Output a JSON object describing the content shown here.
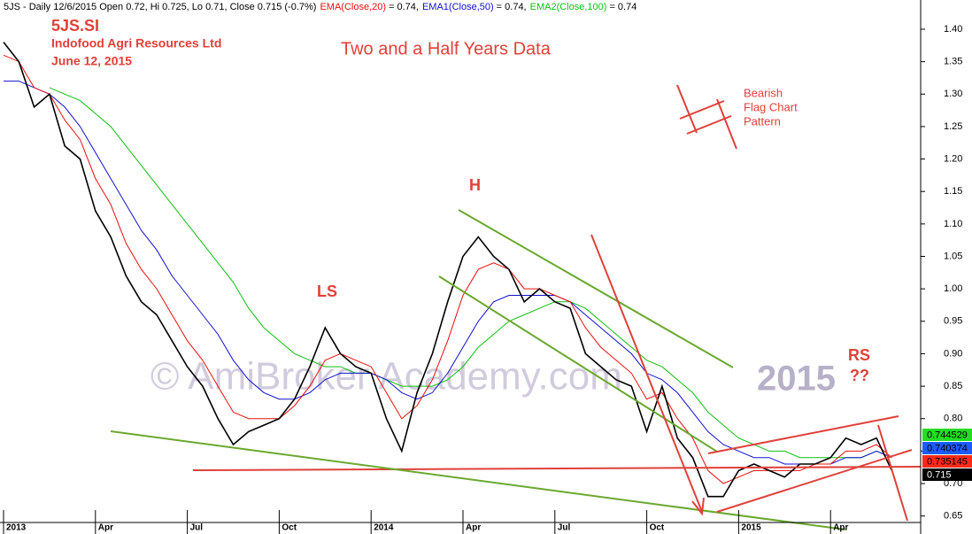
{
  "chart_data": {
    "type": "line",
    "header_prefix": "5JS - Daily 12/6/2015 Open 0.72, Hi 0.725, Lo 0.71, Close 0.715 (-0.7%)",
    "annotations": {
      "ticker": "5JS.SI",
      "company": "Indofood Agri Resources Ltd",
      "date": "June 12, 2015",
      "subtitle": "Two and a Half Years Data",
      "head": "H",
      "left_shoulder": "LS",
      "right_shoulder": "RS",
      "question": "??",
      "flag_1": "Bearish",
      "flag_2": "Flag Chart",
      "flag_3": "Pattern",
      "watermark": "© AmiBroker Academy.com",
      "watermark_year": "2015"
    },
    "x": [
      0,
      0.5,
      1,
      1.5,
      2,
      2.5,
      3,
      3.5,
      4,
      4.5,
      5,
      5.5,
      6,
      6.5,
      7,
      7.5,
      8,
      8.5,
      9,
      9.5,
      10,
      10.5,
      11,
      11.5,
      12,
      12.5,
      13,
      13.5,
      14,
      14.5,
      15,
      15.5,
      16,
      16.5,
      17,
      17.5,
      18,
      18.5,
      19,
      19.5,
      20,
      20.5,
      21,
      21.5,
      22,
      22.5,
      23,
      23.5,
      24,
      24.5,
      25,
      25.5,
      26,
      26.5,
      27,
      27.5,
      28,
      28.5,
      29
    ],
    "series": [
      {
        "color": "#000000",
        "last_value": 0.715,
        "tag_color": "#000000",
        "values": [
          1.38,
          1.35,
          1.28,
          1.3,
          1.22,
          1.2,
          1.12,
          1.08,
          1.02,
          0.98,
          0.96,
          0.92,
          0.88,
          0.85,
          0.8,
          0.76,
          0.78,
          0.79,
          0.8,
          0.83,
          0.88,
          0.94,
          0.9,
          0.88,
          0.87,
          0.8,
          0.75,
          0.84,
          0.9,
          0.98,
          1.05,
          1.08,
          1.05,
          1.03,
          0.98,
          1.0,
          0.98,
          0.97,
          0.9,
          0.88,
          0.86,
          0.85,
          0.78,
          0.85,
          0.77,
          0.74,
          0.68,
          0.68,
          0.72,
          0.73,
          0.72,
          0.71,
          0.73,
          0.73,
          0.74,
          0.77,
          0.76,
          0.77,
          0.72
        ]
      },
      {
        "name": "EMA(Close,20)",
        "readout": "= 0.74,",
        "color": "#e8100c",
        "last_value": 0.735145,
        "tag_color": "#ff2a1a",
        "values": [
          1.36,
          1.35,
          1.31,
          1.3,
          1.26,
          1.23,
          1.17,
          1.13,
          1.07,
          1.03,
          1.0,
          0.96,
          0.92,
          0.89,
          0.85,
          0.81,
          0.8,
          0.8,
          0.8,
          0.82,
          0.85,
          0.89,
          0.9,
          0.89,
          0.88,
          0.84,
          0.8,
          0.82,
          0.86,
          0.92,
          0.99,
          1.03,
          1.04,
          1.03,
          1.0,
          1.0,
          0.99,
          0.98,
          0.94,
          0.91,
          0.89,
          0.87,
          0.83,
          0.84,
          0.8,
          0.77,
          0.72,
          0.7,
          0.71,
          0.72,
          0.72,
          0.72,
          0.72,
          0.73,
          0.73,
          0.75,
          0.75,
          0.76,
          0.74
        ]
      },
      {
        "name": "EMA1(Close,50)",
        "readout": "= 0.74,",
        "color": "#1010d0",
        "last_value": 0.740374,
        "tag_color": "#1a5cff",
        "values": [
          1.32,
          1.32,
          1.31,
          1.3,
          1.28,
          1.25,
          1.21,
          1.17,
          1.13,
          1.09,
          1.06,
          1.02,
          0.99,
          0.96,
          0.93,
          0.89,
          0.86,
          0.84,
          0.83,
          0.83,
          0.84,
          0.86,
          0.87,
          0.87,
          0.87,
          0.86,
          0.84,
          0.83,
          0.84,
          0.87,
          0.91,
          0.95,
          0.98,
          0.99,
          0.99,
          0.99,
          0.99,
          0.98,
          0.96,
          0.94,
          0.92,
          0.9,
          0.87,
          0.86,
          0.84,
          0.81,
          0.78,
          0.76,
          0.75,
          0.74,
          0.74,
          0.73,
          0.73,
          0.73,
          0.73,
          0.74,
          0.74,
          0.75,
          0.74
        ]
      },
      {
        "name": "EMA2(Close,100)",
        "readout": "= 0.74",
        "color": "#10c010",
        "last_value": 0.744529,
        "tag_color": "#22dd22",
        "values": [
          null,
          null,
          null,
          1.31,
          1.3,
          1.29,
          1.27,
          1.25,
          1.22,
          1.19,
          1.16,
          1.13,
          1.1,
          1.07,
          1.04,
          1.01,
          0.97,
          0.94,
          0.92,
          0.9,
          0.89,
          0.88,
          0.88,
          0.87,
          0.87,
          0.86,
          0.85,
          0.85,
          0.85,
          0.86,
          0.88,
          0.91,
          0.93,
          0.95,
          0.96,
          0.97,
          0.98,
          0.98,
          0.97,
          0.95,
          0.93,
          0.91,
          0.89,
          0.88,
          0.86,
          0.84,
          0.81,
          0.79,
          0.77,
          0.76,
          0.75,
          0.75,
          0.74,
          0.74,
          0.74,
          0.74,
          0.74,
          0.75,
          0.74
        ]
      }
    ],
    "xlim": [
      0,
      30
    ],
    "xticks": [
      {
        "value": 0,
        "label": "2013"
      },
      {
        "value": 3,
        "label": "Apr"
      },
      {
        "value": 6,
        "label": "Jul"
      },
      {
        "value": 9,
        "label": "Oct"
      },
      {
        "value": 12,
        "label": "2014"
      },
      {
        "value": 15,
        "label": "Apr"
      },
      {
        "value": 18,
        "label": "Jul"
      },
      {
        "value": 21,
        "label": "Oct"
      },
      {
        "value": 24,
        "label": "2015"
      },
      {
        "value": 27,
        "label": "Apr"
      }
    ],
    "ylim": [
      0.64,
      1.445
    ],
    "yticks": [
      0.65,
      {
        "value": 0.7,
        "label": "0.70"
      },
      0.75,
      {
        "value": 0.8,
        "label": "0.80"
      },
      0.85,
      {
        "value": 0.9,
        "label": "0.90"
      },
      0.95,
      {
        "value": 1.0,
        "label": "1.00"
      },
      1.05,
      {
        "value": 1.1,
        "label": "1.10"
      },
      1.15,
      {
        "value": 1.2,
        "label": "1.20"
      },
      1.25,
      {
        "value": 1.3,
        "label": "1.30"
      },
      1.35,
      {
        "value": 1.4,
        "label": "1.40"
      }
    ]
  }
}
